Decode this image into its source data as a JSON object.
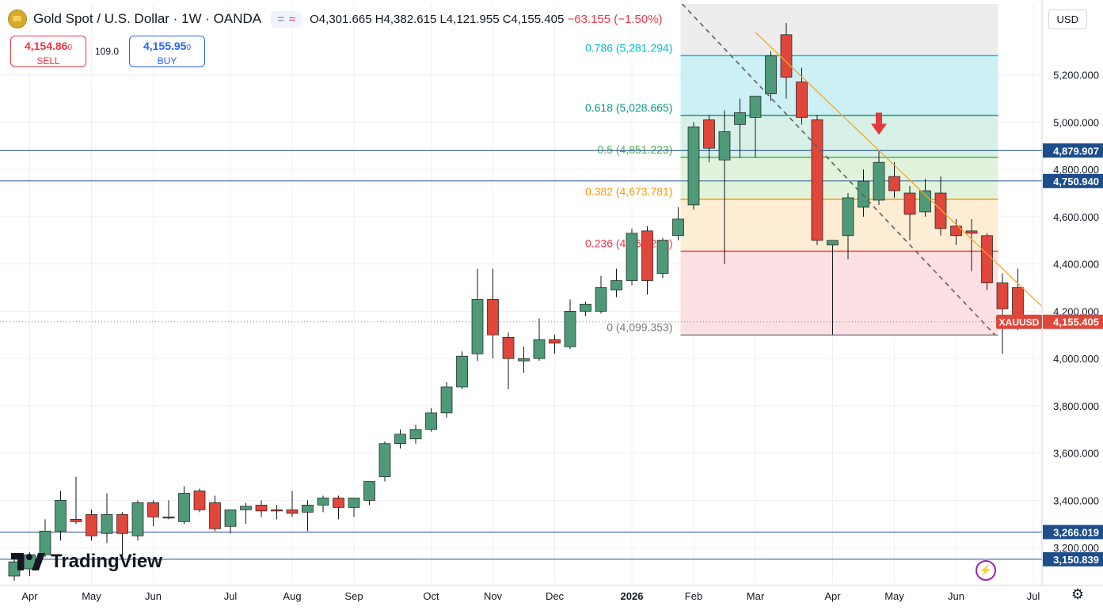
{
  "header": {
    "symbol_title": "Gold Spot / U.S. Dollar · 1W · OANDA",
    "indicator_eq": "=",
    "indicator_wave": "≈",
    "open": "O4,301.665",
    "high": "H4,382.615",
    "low": "L4,121.955",
    "close": "C4,155.405",
    "change": "−63.155 (−1.50%)"
  },
  "trade": {
    "sell_price": "4,154.86",
    "sell_price_small": "0",
    "sell_label": "SELL",
    "spread": "109.0",
    "buy_price": "4,155.95",
    "buy_price_small": "0",
    "buy_label": "BUY"
  },
  "currency": "USD",
  "brand": "TradingView",
  "colors": {
    "up": "#4e9a78",
    "down": "#e0463a",
    "hline": "#1e4d8c",
    "trend": "#f5a623",
    "fib0": "#787b86",
    "fib236": "#f23645",
    "fib382": "#ff9800",
    "fib5": "#4caf50",
    "fib618": "#089981",
    "fib786": "#00bcd4"
  },
  "chart_data": {
    "type": "candlestick",
    "y_ticks": [
      "3,200.000",
      "3,400.000",
      "3,600.000",
      "3,800.000",
      "4,000.000",
      "4,200.000",
      "4,400.000",
      "4,600.000",
      "4,800.000",
      "5,000.000",
      "5,200.000"
    ],
    "y_tick_values": [
      3200,
      3400,
      3600,
      3800,
      4000,
      4200,
      4400,
      4600,
      4800,
      5000,
      5200
    ],
    "ylim": [
      3050,
      5500
    ],
    "x_labels": [
      "Apr",
      "May",
      "Jun",
      "Jul",
      "Aug",
      "Sep",
      "Oct",
      "Nov",
      "Dec",
      "2026",
      "Feb",
      "Mar",
      "Apr",
      "May",
      "Jun",
      "Jul"
    ],
    "x_label_index": [
      1,
      5,
      9,
      14,
      18,
      22,
      27,
      31,
      35,
      40,
      44,
      48,
      53,
      57,
      61,
      66
    ],
    "candles": [
      {
        "o": 3080,
        "h": 3160,
        "l": 3060,
        "c": 3140
      },
      {
        "o": 3110,
        "h": 3180,
        "l": 3080,
        "c": 3170
      },
      {
        "o": 3170,
        "h": 3320,
        "l": 3160,
        "c": 3270
      },
      {
        "o": 3270,
        "h": 3440,
        "l": 3230,
        "c": 3400
      },
      {
        "o": 3320,
        "h": 3500,
        "l": 3300,
        "c": 3310
      },
      {
        "o": 3340,
        "h": 3360,
        "l": 3230,
        "c": 3250
      },
      {
        "o": 3260,
        "h": 3430,
        "l": 3220,
        "c": 3340
      },
      {
        "o": 3340,
        "h": 3350,
        "l": 3150,
        "c": 3260
      },
      {
        "o": 3250,
        "h": 3400,
        "l": 3230,
        "c": 3390
      },
      {
        "o": 3390,
        "h": 3400,
        "l": 3290,
        "c": 3330
      },
      {
        "o": 3330,
        "h": 3400,
        "l": 3320,
        "c": 3325
      },
      {
        "o": 3310,
        "h": 3460,
        "l": 3300,
        "c": 3430
      },
      {
        "o": 3440,
        "h": 3450,
        "l": 3350,
        "c": 3360
      },
      {
        "o": 3390,
        "h": 3420,
        "l": 3270,
        "c": 3280
      },
      {
        "o": 3290,
        "h": 3360,
        "l": 3260,
        "c": 3360
      },
      {
        "o": 3360,
        "h": 3390,
        "l": 3300,
        "c": 3375
      },
      {
        "o": 3380,
        "h": 3400,
        "l": 3330,
        "c": 3355
      },
      {
        "o": 3360,
        "h": 3380,
        "l": 3320,
        "c": 3355
      },
      {
        "o": 3360,
        "h": 3440,
        "l": 3330,
        "c": 3345
      },
      {
        "o": 3350,
        "h": 3400,
        "l": 3270,
        "c": 3380
      },
      {
        "o": 3380,
        "h": 3420,
        "l": 3350,
        "c": 3410
      },
      {
        "o": 3410,
        "h": 3420,
        "l": 3320,
        "c": 3370
      },
      {
        "o": 3370,
        "h": 3410,
        "l": 3330,
        "c": 3410
      },
      {
        "o": 3400,
        "h": 3480,
        "l": 3380,
        "c": 3480
      },
      {
        "o": 3500,
        "h": 3650,
        "l": 3480,
        "c": 3640
      },
      {
        "o": 3640,
        "h": 3700,
        "l": 3620,
        "c": 3680
      },
      {
        "o": 3660,
        "h": 3720,
        "l": 3640,
        "c": 3700
      },
      {
        "o": 3700,
        "h": 3790,
        "l": 3690,
        "c": 3770
      },
      {
        "o": 3770,
        "h": 3900,
        "l": 3750,
        "c": 3880
      },
      {
        "o": 3880,
        "h": 4030,
        "l": 3870,
        "c": 4010
      },
      {
        "o": 4020,
        "h": 4380,
        "l": 3990,
        "c": 4250
      },
      {
        "o": 4250,
        "h": 4380,
        "l": 4000,
        "c": 4100
      },
      {
        "o": 4090,
        "h": 4110,
        "l": 3870,
        "c": 4000
      },
      {
        "o": 3990,
        "h": 4050,
        "l": 3940,
        "c": 4000
      },
      {
        "o": 4000,
        "h": 4170,
        "l": 3990,
        "c": 4080
      },
      {
        "o": 4080,
        "h": 4100,
        "l": 4020,
        "c": 4065
      },
      {
        "o": 4050,
        "h": 4250,
        "l": 4040,
        "c": 4200
      },
      {
        "o": 4200,
        "h": 4240,
        "l": 4180,
        "c": 4230
      },
      {
        "o": 4200,
        "h": 4350,
        "l": 4190,
        "c": 4300
      },
      {
        "o": 4290,
        "h": 4380,
        "l": 4260,
        "c": 4330
      },
      {
        "o": 4330,
        "h": 4550,
        "l": 4310,
        "c": 4530
      },
      {
        "o": 4540,
        "h": 4560,
        "l": 4270,
        "c": 4330
      },
      {
        "o": 4360,
        "h": 4510,
        "l": 4340,
        "c": 4500
      },
      {
        "o": 4520,
        "h": 4640,
        "l": 4500,
        "c": 4590
      },
      {
        "o": 4650,
        "h": 5000,
        "l": 4630,
        "c": 4980
      },
      {
        "o": 5010,
        "h": 5030,
        "l": 4830,
        "c": 4890
      },
      {
        "o": 4840,
        "h": 5050,
        "l": 4400,
        "c": 4960
      },
      {
        "o": 4990,
        "h": 5100,
        "l": 4850,
        "c": 5040
      },
      {
        "o": 5020,
        "h": 5110,
        "l": 4850,
        "c": 5110
      },
      {
        "o": 5120,
        "h": 5300,
        "l": 5090,
        "c": 5280
      },
      {
        "o": 5370,
        "h": 5420,
        "l": 5100,
        "c": 5190
      },
      {
        "o": 5170,
        "h": 5230,
        "l": 4990,
        "c": 5020
      },
      {
        "o": 5010,
        "h": 5030,
        "l": 4480,
        "c": 4500
      },
      {
        "o": 4480,
        "h": 4500,
        "l": 4100,
        "c": 4500
      },
      {
        "o": 4520,
        "h": 4700,
        "l": 4420,
        "c": 4680
      },
      {
        "o": 4640,
        "h": 4800,
        "l": 4600,
        "c": 4750
      },
      {
        "o": 4670,
        "h": 4880,
        "l": 4650,
        "c": 4830
      },
      {
        "o": 4770,
        "h": 4830,
        "l": 4680,
        "c": 4710
      },
      {
        "o": 4700,
        "h": 4730,
        "l": 4500,
        "c": 4610
      },
      {
        "o": 4620,
        "h": 4760,
        "l": 4600,
        "c": 4710
      },
      {
        "o": 4700,
        "h": 4770,
        "l": 4520,
        "c": 4550
      },
      {
        "o": 4560,
        "h": 4590,
        "l": 4480,
        "c": 4520
      },
      {
        "o": 4540,
        "h": 4590,
        "l": 4370,
        "c": 4530
      },
      {
        "o": 4520,
        "h": 4530,
        "l": 4290,
        "c": 4320
      },
      {
        "o": 4320,
        "h": 4360,
        "l": 4020,
        "c": 4210
      },
      {
        "o": 4300,
        "h": 4380,
        "l": 4120,
        "c": 4155
      }
    ],
    "horizontal_levels": [
      {
        "label": "4,879.907",
        "value": 4879.907
      },
      {
        "label": "4,750.940",
        "value": 4750.94
      },
      {
        "label": "3,266.019",
        "value": 3266.019
      },
      {
        "label": "3,150.839",
        "value": 3150.839
      }
    ],
    "fib_levels": [
      {
        "label": "0.786 (5,281.294)",
        "value": 5281.294,
        "color": "#00bcd4"
      },
      {
        "label": "0.618 (5,028.665)",
        "value": 5028.665,
        "color": "#089981"
      },
      {
        "label": "0.5 (4,851.223)",
        "value": 4851.223,
        "color": "#4caf50"
      },
      {
        "label": "0.382 (4,673.781)",
        "value": 4673.781,
        "color": "#ff9800"
      },
      {
        "label": "0.236 (4,454.236)",
        "value": 4454.236,
        "color": "#f23645"
      },
      {
        "label": "0 (4,099.353)",
        "value": 4099.353,
        "color": "#787b86"
      }
    ],
    "last_price": {
      "symbol": "XAUUSD",
      "label": "4,155.405",
      "value": 4155.405
    },
    "dotted_price_line": 4155.405
  }
}
